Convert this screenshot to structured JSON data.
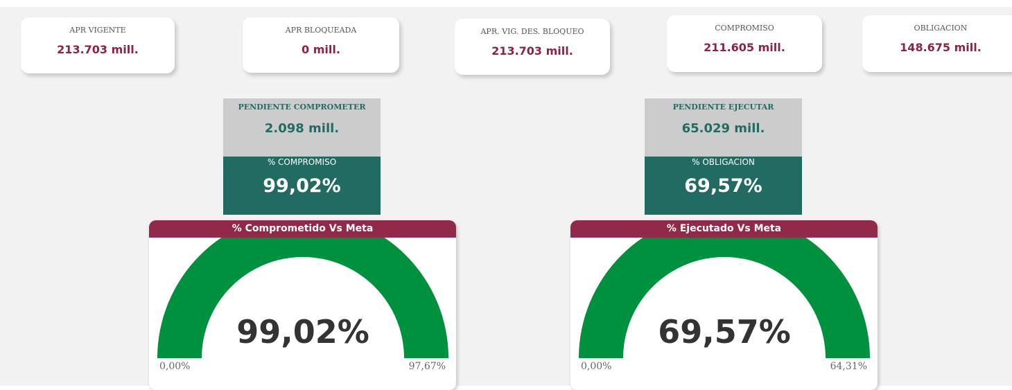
{
  "cards": [
    {
      "label": "APR VIGENTE",
      "value": "213.703 mill."
    },
    {
      "label": "APR BLOQUEADA",
      "value": "0 mill."
    },
    {
      "label": "APR. VIG. DES. BLOQUEO",
      "value": "213.703 mill."
    },
    {
      "label": "COMPROMISO",
      "value": "211.605 mill."
    },
    {
      "label": "OBLIGACION",
      "value": "148.675 mill."
    }
  ],
  "pending": [
    {
      "label": "PENDIENTE COMPROMETER",
      "value": "2.098 mill.",
      "pct_label": "% COMPROMISO",
      "pct_value": "99,02%"
    },
    {
      "label": "PENDIENTE EJECUTAR",
      "value": "65.029 mill.",
      "pct_label": "% OBLIGACION",
      "pct_value": "69,57%"
    }
  ],
  "gauges": [
    {
      "title": "% Comprometido Vs Meta",
      "value": 99.02,
      "value_label": "99,02%",
      "min": 0,
      "min_label": "0,00%",
      "max": 97.67,
      "max_label": "97,67%"
    },
    {
      "title": "% Ejecutado Vs Meta",
      "value": 69.57,
      "value_label": "69,57%",
      "min": 0,
      "min_label": "0,00%",
      "max": 64.31,
      "max_label": "64,31%"
    }
  ]
}
